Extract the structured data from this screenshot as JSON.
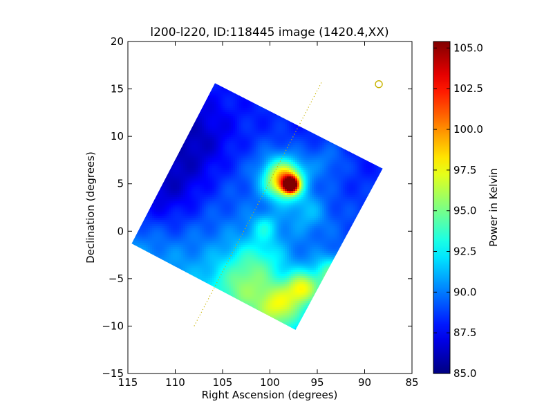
{
  "chart_data": {
    "type": "heatmap",
    "title": "l200-l220, ID:118445 image (1420.4,XX)",
    "xlabel": "Right Ascension (degrees)",
    "ylabel": "Declination (degrees)",
    "xlim": [
      115,
      85
    ],
    "ylim": [
      -15,
      20
    ],
    "x_ticks": [
      115,
      110,
      105,
      100,
      95,
      90,
      85
    ],
    "y_ticks": [
      -15,
      -10,
      -5,
      0,
      5,
      10,
      15,
      20
    ],
    "x_tick_labels": [
      "115",
      "110",
      "105",
      "100",
      "95",
      "90",
      "85"
    ],
    "y_tick_labels": [
      "−15",
      "−10",
      "−5",
      "0",
      "5",
      "10",
      "15",
      "20"
    ],
    "grid": false,
    "colormap": "jet",
    "colorbar": {
      "label": "Power in Kelvin",
      "range": [
        85.0,
        105.4
      ],
      "ticks": [
        85.0,
        87.5,
        90.0,
        92.5,
        95.0,
        97.5,
        100.0,
        102.5,
        105.0
      ],
      "tick_labels": [
        "85.0",
        "87.5",
        "90.0",
        "92.5",
        "95.0",
        "97.5",
        "100.0",
        "102.5",
        "105.0"
      ]
    },
    "map_region_corners": [
      {
        "ra": 105.8,
        "dec": 15.6
      },
      {
        "ra": 88.1,
        "dec": 6.6
      },
      {
        "ra": 97.3,
        "dec": -10.4
      },
      {
        "ra": 114.6,
        "dec": -1.3
      }
    ],
    "background_level": 89.5,
    "features": [
      {
        "ra": 97.8,
        "dec": 4.9,
        "value": 105.4,
        "sigma": 0.55
      },
      {
        "ra": 98.4,
        "dec": 5.3,
        "value": 99.0,
        "sigma": 1.3
      },
      {
        "ra": 99.0,
        "dec": 6.2,
        "value": 92.0,
        "sigma": 1.8
      },
      {
        "ra": 111.5,
        "dec": 4.5,
        "value": 86.3,
        "sigma": 3.5
      },
      {
        "ra": 108.0,
        "dec": 10.0,
        "value": 87.2,
        "sigma": 3.0
      },
      {
        "ra": 99.0,
        "dec": -8.0,
        "value": 95.5,
        "sigma": 1.7
      },
      {
        "ra": 96.5,
        "dec": -6.0,
        "value": 96.0,
        "sigma": 1.2
      },
      {
        "ra": 93.5,
        "dec": -4.5,
        "value": 94.5,
        "sigma": 1.2
      },
      {
        "ra": 103.0,
        "dec": -6.0,
        "value": 93.5,
        "sigma": 2.3
      },
      {
        "ra": 101.0,
        "dec": -3.0,
        "value": 92.0,
        "sigma": 2.0
      },
      {
        "ra": 100.5,
        "dec": 0.5,
        "value": 92.0,
        "sigma": 1.0
      },
      {
        "ra": 96.0,
        "dec": 2.0,
        "value": 91.5,
        "sigma": 1.5
      },
      {
        "ra": 94.0,
        "dec": 7.5,
        "value": 91.0,
        "sigma": 1.5
      }
    ],
    "dotted_line": {
      "color": "#c8b400",
      "points": [
        {
          "ra": 108.0,
          "dec": -10.0
        },
        {
          "ra": 94.5,
          "dec": 15.8
        }
      ]
    },
    "circle_marker": {
      "ra": 88.5,
      "dec": 15.5,
      "color": "#c8b400"
    }
  }
}
